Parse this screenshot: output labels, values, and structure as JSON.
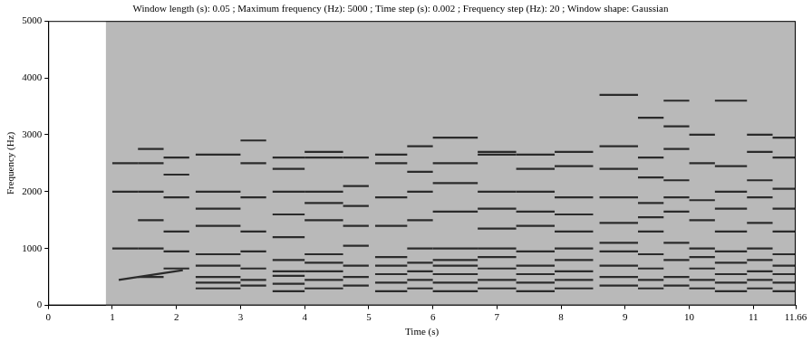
{
  "chart_data": {
    "type": "spectrogram",
    "title": "Window length (s): 0.05 ; Maximum frequency (Hz): 5000 ; Time step (s): 0.002 ; Frequency step (Hz): 20 ; Window shape: Gaussian",
    "x_label": "Time (s)",
    "y_label": "Frequency (Hz)",
    "xlim": [
      0,
      11.66
    ],
    "xticks": [
      0,
      1,
      2,
      3,
      4,
      5,
      6,
      7,
      8,
      9,
      10,
      11,
      11.66
    ],
    "ylim": [
      0,
      5000
    ],
    "yticks": [
      0,
      1000,
      2000,
      3000,
      4000,
      5000
    ],
    "grid": false,
    "color": "#2b2b2b",
    "sound_start": 0.9,
    "notes": [
      {
        "x": [
          1.0,
          1.4
        ],
        "y": [
          1000,
          2000,
          2500
        ]
      },
      {
        "x": [
          1.4,
          1.8
        ],
        "y": [
          500,
          1000,
          1500,
          2000,
          2500,
          2750
        ]
      },
      {
        "x": [
          1.8,
          2.2
        ],
        "y": [
          650,
          950,
          1300,
          1900,
          2300,
          2600
        ]
      },
      {
        "x": [
          2.3,
          3.0
        ],
        "y": [
          300,
          400,
          500,
          700,
          900,
          1400,
          1700,
          2000,
          2650
        ]
      },
      {
        "x": [
          3.0,
          3.4
        ],
        "y": [
          350,
          450,
          650,
          950,
          1300,
          1900,
          2500,
          2900
        ]
      },
      {
        "x": [
          3.5,
          4.0
        ],
        "y": [
          250,
          380,
          520,
          600,
          800,
          1200,
          1600,
          2000,
          2400,
          2600
        ]
      },
      {
        "x": [
          4.0,
          4.6
        ],
        "y": [
          300,
          450,
          600,
          750,
          900,
          1500,
          1800,
          2000,
          2600,
          2700
        ]
      },
      {
        "x": [
          4.6,
          5.0
        ],
        "y": [
          350,
          500,
          700,
          1050,
          1400,
          1750,
          2100,
          2600
        ]
      },
      {
        "x": [
          5.1,
          5.6
        ],
        "y": [
          250,
          400,
          550,
          700,
          850,
          1400,
          1900,
          2500,
          2650
        ]
      },
      {
        "x": [
          5.6,
          6.0
        ],
        "y": [
          300,
          450,
          600,
          750,
          1000,
          1500,
          2000,
          2350,
          2800
        ]
      },
      {
        "x": [
          6.0,
          6.7
        ],
        "y": [
          250,
          400,
          550,
          700,
          800,
          1000,
          1650,
          2150,
          2500,
          2950
        ]
      },
      {
        "x": [
          6.7,
          7.3
        ],
        "y": [
          300,
          450,
          650,
          850,
          1000,
          1350,
          1700,
          2000,
          2650,
          2700
        ]
      },
      {
        "x": [
          7.3,
          7.9
        ],
        "y": [
          250,
          400,
          550,
          700,
          950,
          1400,
          1650,
          2000,
          2400,
          2650
        ]
      },
      {
        "x": [
          7.9,
          8.5
        ],
        "y": [
          300,
          450,
          600,
          800,
          1000,
          1300,
          1600,
          1900,
          2450,
          2700
        ]
      },
      {
        "x": [
          8.6,
          9.2
        ],
        "y": [
          350,
          500,
          700,
          950,
          1100,
          1450,
          1900,
          2400,
          2800,
          3700
        ]
      },
      {
        "x": [
          9.2,
          9.6
        ],
        "y": [
          300,
          450,
          650,
          900,
          1300,
          1550,
          1800,
          2250,
          2600,
          3300
        ]
      },
      {
        "x": [
          9.6,
          10.0
        ],
        "y": [
          350,
          500,
          800,
          1100,
          1650,
          1900,
          2200,
          2750,
          3150,
          3600
        ]
      },
      {
        "x": [
          10.0,
          10.4
        ],
        "y": [
          300,
          450,
          650,
          850,
          1000,
          1500,
          1850,
          2500,
          3000
        ]
      },
      {
        "x": [
          10.4,
          10.9
        ],
        "y": [
          250,
          400,
          550,
          750,
          950,
          1300,
          1700,
          2000,
          2450,
          3600
        ]
      },
      {
        "x": [
          10.9,
          11.3
        ],
        "y": [
          300,
          450,
          600,
          800,
          1000,
          1450,
          1900,
          2200,
          2700,
          3000
        ]
      },
      {
        "x": [
          11.3,
          11.66
        ],
        "y": [
          250,
          400,
          550,
          700,
          900,
          1300,
          1700,
          2050,
          2600,
          2950
        ]
      }
    ],
    "glides": [
      {
        "x": [
          1.1,
          2.1
        ],
        "y": [
          450,
          620
        ]
      }
    ]
  }
}
